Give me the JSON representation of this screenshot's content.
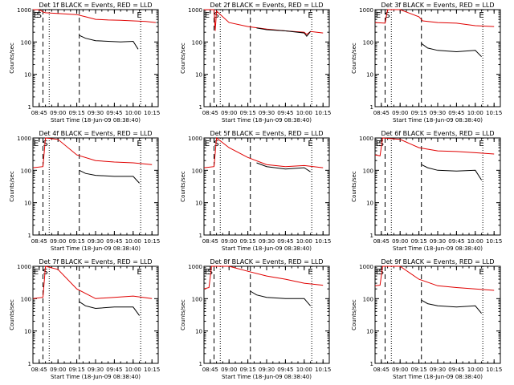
{
  "colors": {
    "events": "#000000",
    "lld": "#e00000",
    "axis": "#000000"
  },
  "chart_data": [
    {
      "type": "line",
      "title": "Det 1f BLACK = Events, RED = LLD",
      "xlabel": "Start Time (18-Jun-09 08:38:40)",
      "ylabel": "Counts/sec",
      "yscale": "log",
      "ylim": [
        1,
        1000
      ],
      "y_ticks": [
        "1",
        "10",
        "100",
        "1000"
      ],
      "x_ticks": [
        "08:45",
        "09:00",
        "09:15",
        "09:30",
        "09:45",
        "10:00",
        "10:15"
      ],
      "markers": {
        "S": "08:45",
        "E": "10:05"
      },
      "series": [
        {
          "name": "LLD",
          "x": [
            "08:40",
            "08:44",
            "08:46",
            "08:48",
            "08:50",
            "09:15",
            "09:22",
            "09:30",
            "09:40",
            "09:50",
            "10:00",
            "10:10",
            "10:18"
          ],
          "y": [
            1000,
            1000,
            950,
            850,
            800,
            700,
            600,
            500,
            480,
            470,
            450,
            430,
            400
          ]
        },
        {
          "name": "Events",
          "x": [
            "09:17",
            "09:22",
            "09:30",
            "09:40",
            "09:50",
            "10:00",
            "10:04"
          ],
          "y": [
            160,
            130,
            110,
            105,
            100,
            105,
            60
          ]
        }
      ]
    },
    {
      "type": "line",
      "title": "Det 2f BLACK = Events, RED = LLD",
      "xlabel": "Start Time (18-Jun-09 08:38:40)",
      "ylabel": "Counts/sec",
      "yscale": "log",
      "ylim": [
        1,
        1000
      ],
      "y_ticks": [
        "1",
        "10",
        "100",
        "1000"
      ],
      "x_ticks": [
        "08:45",
        "09:00",
        "09:15",
        "09:30",
        "09:45",
        "10:00",
        "10:15"
      ],
      "markers": {
        "S": "08:50",
        "E": "10:05"
      },
      "series": [
        {
          "name": "LLD",
          "x": [
            "08:40",
            "08:45",
            "08:48",
            "08:49",
            "08:50",
            "09:00",
            "09:15",
            "09:30",
            "09:45",
            "10:00",
            "10:02",
            "10:05",
            "10:15"
          ],
          "y": [
            1000,
            1000,
            1000,
            220,
            900,
            400,
            300,
            250,
            220,
            200,
            170,
            210,
            190
          ]
        },
        {
          "name": "Events",
          "x": [
            "09:22",
            "09:30",
            "09:45",
            "10:00",
            "10:02",
            "10:05"
          ],
          "y": [
            270,
            240,
            220,
            190,
            150,
            210
          ]
        }
      ]
    },
    {
      "type": "line",
      "title": "Det 3f BLACK = Events, RED = LLD",
      "xlabel": "Start Time (18-Jun-09 08:38:40)",
      "ylabel": "Counts/sec",
      "yscale": "log",
      "ylim": [
        1,
        1000
      ],
      "y_ticks": [
        "1",
        "10",
        "100",
        "1000"
      ],
      "x_ticks": [
        "08:45",
        "09:00",
        "09:15",
        "09:30",
        "09:45",
        "10:00",
        "10:15"
      ],
      "markers": {
        "S": "08:50",
        "E": "10:05"
      },
      "series": [
        {
          "name": "LLD",
          "x": [
            "08:40",
            "08:48",
            "08:50",
            "09:00",
            "09:15",
            "09:18",
            "09:30",
            "09:45",
            "10:00",
            "10:15"
          ],
          "y": [
            400,
            380,
            1000,
            1000,
            600,
            450,
            400,
            380,
            320,
            300
          ]
        },
        {
          "name": "Events",
          "x": [
            "09:17",
            "09:22",
            "09:30",
            "09:45",
            "10:00",
            "10:05"
          ],
          "y": [
            90,
            65,
            55,
            50,
            55,
            35
          ]
        }
      ]
    },
    {
      "type": "line",
      "title": "Det 4f BLACK = Events, RED = LLD",
      "xlabel": "Start Time (18-Jun-09 08:38:40)",
      "ylabel": "Counts/sec",
      "yscale": "log",
      "ylim": [
        1,
        1000
      ],
      "y_ticks": [
        "1",
        "10",
        "100",
        "1000"
      ],
      "x_ticks": [
        "08:45",
        "09:00",
        "09:15",
        "09:30",
        "09:45",
        "10:00",
        "10:15"
      ],
      "markers": {
        "S": "08:50",
        "E": "10:05"
      },
      "series": [
        {
          "name": "LLD",
          "x": [
            "08:40",
            "08:48",
            "08:50",
            "09:00",
            "09:15",
            "09:30",
            "09:45",
            "10:00",
            "10:15"
          ],
          "y": [
            120,
            130,
            1000,
            900,
            300,
            200,
            180,
            170,
            150
          ]
        },
        {
          "name": "Events",
          "x": [
            "09:17",
            "09:22",
            "09:30",
            "09:45",
            "10:00",
            "10:05"
          ],
          "y": [
            100,
            80,
            70,
            65,
            65,
            40
          ]
        }
      ]
    },
    {
      "type": "line",
      "title": "Det 5f BLACK = Events, RED = LLD",
      "xlabel": "Start Time (18-Jun-09 08:38:40)",
      "ylabel": "Counts/sec",
      "yscale": "log",
      "ylim": [
        1,
        1000
      ],
      "y_ticks": [
        "1",
        "10",
        "100",
        "1000"
      ],
      "x_ticks": [
        "08:45",
        "09:00",
        "09:15",
        "09:30",
        "09:45",
        "10:00",
        "10:15"
      ],
      "markers": {
        "S": "08:50",
        "E": "10:05"
      },
      "series": [
        {
          "name": "LLD",
          "x": [
            "08:40",
            "08:48",
            "08:50",
            "09:00",
            "09:15",
            "09:30",
            "09:45",
            "10:00",
            "10:15"
          ],
          "y": [
            120,
            130,
            1000,
            500,
            250,
            150,
            130,
            140,
            120
          ]
        },
        {
          "name": "Events",
          "x": [
            "09:22",
            "09:30",
            "09:45",
            "10:00",
            "10:05"
          ],
          "y": [
            170,
            130,
            110,
            120,
            90
          ]
        }
      ]
    },
    {
      "type": "line",
      "title": "Det 6f BLACK = Events, RED = LLD",
      "xlabel": "Start Time (18-Jun-09 08:38:40)",
      "ylabel": "Counts/sec",
      "yscale": "log",
      "ylim": [
        1,
        1000
      ],
      "y_ticks": [
        "1",
        "10",
        "100",
        "1000"
      ],
      "x_ticks": [
        "08:45",
        "09:00",
        "09:15",
        "09:30",
        "09:45",
        "10:00",
        "10:15"
      ],
      "markers": {
        "S": "08:45",
        "E": "10:05"
      },
      "series": [
        {
          "name": "LLD",
          "x": [
            "08:40",
            "08:44",
            "08:46",
            "09:00",
            "09:15",
            "09:30",
            "09:45",
            "10:00",
            "10:15"
          ],
          "y": [
            300,
            280,
            1000,
            900,
            500,
            400,
            380,
            350,
            320
          ]
        },
        {
          "name": "Events",
          "x": [
            "09:17",
            "09:22",
            "09:30",
            "09:45",
            "10:00",
            "10:05"
          ],
          "y": [
            150,
            120,
            100,
            95,
            100,
            50
          ]
        }
      ]
    },
    {
      "type": "line",
      "title": "Det 7f BLACK = Events, RED = LLD",
      "xlabel": "Start Time (18-Jun-09 08:38:40)",
      "ylabel": "Counts/sec",
      "yscale": "log",
      "ylim": [
        1,
        1000
      ],
      "y_ticks": [
        "1",
        "10",
        "100",
        "1000"
      ],
      "x_ticks": [
        "08:45",
        "09:00",
        "09:15",
        "09:30",
        "09:45",
        "10:00",
        "10:15"
      ],
      "markers": {
        "S": "08:50",
        "E": "10:05"
      },
      "series": [
        {
          "name": "LLD",
          "x": [
            "08:40",
            "08:48",
            "08:50",
            "09:00",
            "09:15",
            "09:30",
            "09:45",
            "10:00",
            "10:15"
          ],
          "y": [
            100,
            110,
            1000,
            800,
            200,
            100,
            110,
            120,
            100
          ]
        },
        {
          "name": "Events",
          "x": [
            "09:17",
            "09:22",
            "09:30",
            "09:45",
            "10:00",
            "10:05"
          ],
          "y": [
            80,
            60,
            50,
            55,
            55,
            30
          ]
        }
      ]
    },
    {
      "type": "line",
      "title": "Det 8f BLACK = Events, RED = LLD",
      "xlabel": "Start Time (18-Jun-09 08:38:40)",
      "ylabel": "Counts/sec",
      "yscale": "log",
      "ylim": [
        1,
        1000
      ],
      "y_ticks": [
        "1",
        "10",
        "100",
        "1000"
      ],
      "x_ticks": [
        "08:45",
        "09:00",
        "09:15",
        "09:30",
        "09:45",
        "10:00",
        "10:15"
      ],
      "markers": {
        "S": "08:45",
        "E": "10:05"
      },
      "series": [
        {
          "name": "LLD",
          "x": [
            "08:40",
            "08:44",
            "08:46",
            "09:00",
            "09:15",
            "09:30",
            "09:45",
            "10:00",
            "10:15"
          ],
          "y": [
            200,
            220,
            1000,
            1000,
            700,
            500,
            400,
            300,
            260
          ]
        },
        {
          "name": "Events",
          "x": [
            "09:17",
            "09:22",
            "09:30",
            "09:45",
            "10:00",
            "10:05"
          ],
          "y": [
            170,
            130,
            110,
            100,
            100,
            60
          ]
        }
      ]
    },
    {
      "type": "line",
      "title": "Det 9f BLACK = Events, RED = LLD",
      "xlabel": "Start Time (18-Jun-09 08:38:40)",
      "ylabel": "Counts/sec",
      "yscale": "log",
      "ylim": [
        1,
        1000
      ],
      "y_ticks": [
        "1",
        "10",
        "100",
        "1000"
      ],
      "x_ticks": [
        "08:45",
        "09:00",
        "09:15",
        "09:30",
        "09:45",
        "10:00",
        "10:15"
      ],
      "markers": {
        "S": "08:45",
        "E": "10:05"
      },
      "series": [
        {
          "name": "LLD",
          "x": [
            "08:40",
            "08:44",
            "08:46",
            "09:00",
            "09:15",
            "09:30",
            "09:45",
            "10:00",
            "10:15"
          ],
          "y": [
            250,
            260,
            1000,
            1000,
            400,
            250,
            220,
            200,
            180
          ]
        },
        {
          "name": "Events",
          "x": [
            "09:17",
            "09:22",
            "09:30",
            "09:45",
            "10:00",
            "10:05"
          ],
          "y": [
            90,
            70,
            60,
            55,
            60,
            35
          ]
        }
      ]
    }
  ]
}
